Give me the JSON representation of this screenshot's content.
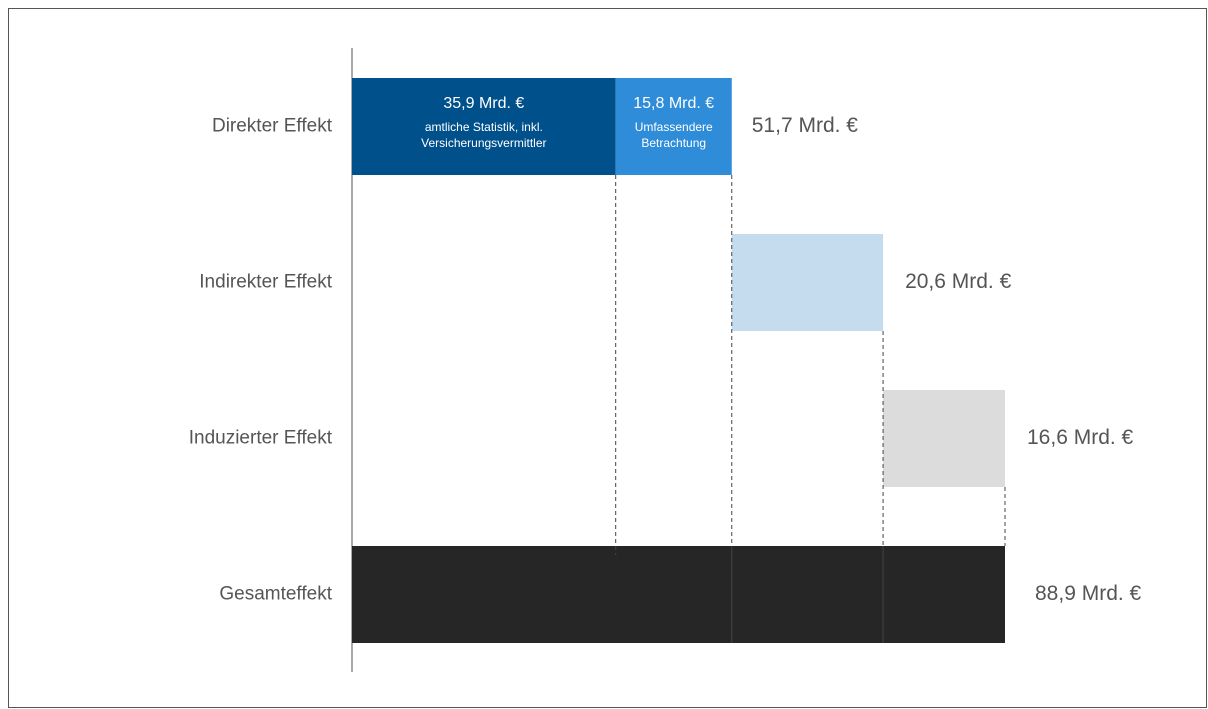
{
  "chart_data": {
    "type": "waterfall",
    "steps": [
      {
        "category": "Direkter Effekt",
        "segments": [
          {
            "value": 35.9,
            "value_label": "35,9 Mrd. €",
            "note": [
              "amtliche Statistik, inkl.",
              "Versicherungsvermittler"
            ],
            "color": "#00508c",
            "text_color": "#ffffff"
          },
          {
            "value": 15.8,
            "value_label": "15,8 Mrd. €",
            "note": [
              "Umfassendere",
              "Betrachtung"
            ],
            "color": "#2e8cd9",
            "text_color": "#ffffff"
          }
        ],
        "sum": 51.7,
        "sum_label": "51,7 Mrd. €"
      },
      {
        "category": "Indirekter Effekt",
        "segments": [
          {
            "value": 20.6,
            "value_label": "20,6 Mrd. €",
            "color": "#c5dcee"
          }
        ]
      },
      {
        "category": "Induzierter Effekt",
        "segments": [
          {
            "value": 16.6,
            "value_label": "16,6 Mrd. €",
            "color": "#dcdcdc"
          }
        ]
      }
    ],
    "total": {
      "category": "Gesamteffekt",
      "value": 88.9,
      "value_label": "88,9 Mrd. €",
      "color": "#262626"
    }
  }
}
